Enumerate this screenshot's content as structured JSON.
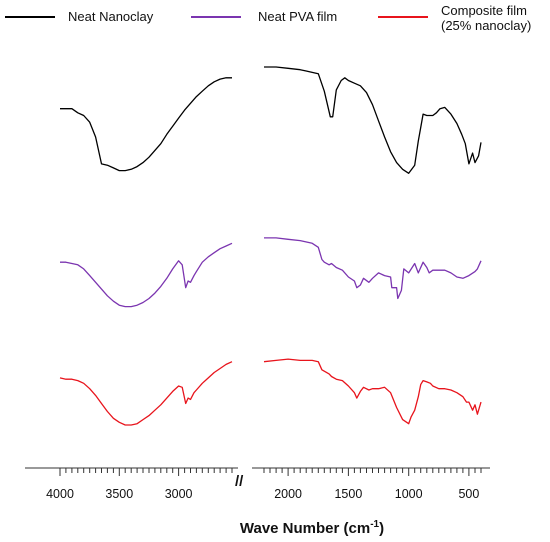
{
  "chart_data": {
    "type": "line",
    "xlabel": "Wave Number (cm-1)",
    "xlabel_main": "Wave Number (cm",
    "xlabel_sup": "-1",
    "xlabel_close": ")",
    "x_reversed": true,
    "axis_break": true,
    "break_mark": "//",
    "x_segments": [
      [
        4000,
        2550
      ],
      [
        2200,
        400
      ]
    ],
    "y_axis_visible": false,
    "grid": false,
    "legend_position": "top",
    "ticks": [
      {
        "value": 4000,
        "label": "4000"
      },
      {
        "value": 3500,
        "label": "3500"
      },
      {
        "value": 3000,
        "label": "3000"
      },
      {
        "value": 2000,
        "label": "2000"
      },
      {
        "value": 1500,
        "label": "1500"
      },
      {
        "value": 1000,
        "label": "1000"
      },
      {
        "value": 500,
        "label": "500"
      }
    ],
    "series": [
      {
        "name": "Neat Nanoclay",
        "color": "#000000",
        "x": [
          4000,
          3950,
          3900,
          3850,
          3800,
          3750,
          3700,
          3650,
          3600,
          3550,
          3500,
          3450,
          3400,
          3350,
          3300,
          3250,
          3200,
          3150,
          3100,
          3050,
          3000,
          2950,
          2900,
          2850,
          2800,
          2750,
          2700,
          2650,
          2600,
          2550,
          2200,
          2100,
          2000,
          1900,
          1850,
          1800,
          1750,
          1700,
          1650,
          1630,
          1600,
          1560,
          1530,
          1500,
          1450,
          1400,
          1350,
          1300,
          1250,
          1200,
          1150,
          1100,
          1050,
          1000,
          950,
          920,
          900,
          880,
          850,
          800,
          770,
          740,
          700,
          650,
          600,
          560,
          530,
          500,
          470,
          450,
          420,
          400
        ],
        "y": [
          0.31,
          0.31,
          0.31,
          0.34,
          0.36,
          0.41,
          0.52,
          0.72,
          0.73,
          0.75,
          0.77,
          0.77,
          0.76,
          0.74,
          0.71,
          0.67,
          0.62,
          0.57,
          0.5,
          0.44,
          0.38,
          0.32,
          0.27,
          0.22,
          0.18,
          0.14,
          0.11,
          0.09,
          0.08,
          0.08,
          0.0,
          0.0,
          0.01,
          0.02,
          0.03,
          0.04,
          0.05,
          0.18,
          0.37,
          0.37,
          0.17,
          0.1,
          0.08,
          0.1,
          0.12,
          0.14,
          0.19,
          0.28,
          0.4,
          0.52,
          0.63,
          0.71,
          0.76,
          0.79,
          0.73,
          0.55,
          0.45,
          0.35,
          0.36,
          0.36,
          0.34,
          0.31,
          0.3,
          0.35,
          0.42,
          0.5,
          0.57,
          0.72,
          0.64,
          0.71,
          0.66,
          0.56
        ]
      },
      {
        "name": "Neat PVA film",
        "color": "#7b35b0",
        "x": [
          4000,
          3950,
          3900,
          3850,
          3800,
          3750,
          3700,
          3650,
          3600,
          3550,
          3500,
          3450,
          3400,
          3350,
          3300,
          3250,
          3200,
          3150,
          3100,
          3050,
          3000,
          2970,
          2940,
          2920,
          2900,
          2870,
          2850,
          2800,
          2750,
          2700,
          2650,
          2600,
          2550,
          2200,
          2100,
          2000,
          1900,
          1800,
          1750,
          1720,
          1700,
          1660,
          1640,
          1600,
          1550,
          1500,
          1450,
          1430,
          1400,
          1375,
          1330,
          1300,
          1250,
          1200,
          1150,
          1140,
          1100,
          1090,
          1060,
          1040,
          1000,
          950,
          920,
          880,
          850,
          830,
          800,
          750,
          700,
          650,
          600,
          550,
          500,
          450,
          430,
          400
        ],
        "y": [
          1.45,
          1.45,
          1.46,
          1.47,
          1.5,
          1.55,
          1.6,
          1.65,
          1.7,
          1.74,
          1.77,
          1.78,
          1.78,
          1.77,
          1.75,
          1.72,
          1.68,
          1.63,
          1.57,
          1.5,
          1.44,
          1.47,
          1.64,
          1.59,
          1.6,
          1.55,
          1.52,
          1.45,
          1.41,
          1.38,
          1.35,
          1.33,
          1.31,
          1.27,
          1.27,
          1.28,
          1.29,
          1.31,
          1.34,
          1.43,
          1.45,
          1.47,
          1.46,
          1.49,
          1.51,
          1.56,
          1.59,
          1.64,
          1.62,
          1.57,
          1.6,
          1.57,
          1.53,
          1.55,
          1.56,
          1.64,
          1.64,
          1.72,
          1.66,
          1.5,
          1.53,
          1.46,
          1.53,
          1.45,
          1.49,
          1.53,
          1.51,
          1.51,
          1.51,
          1.53,
          1.56,
          1.57,
          1.55,
          1.52,
          1.5,
          1.44
        ]
      },
      {
        "name": "Composite film\n(25% nanoclay)",
        "color": "#e8141c",
        "x": [
          4000,
          3950,
          3900,
          3850,
          3800,
          3750,
          3700,
          3650,
          3600,
          3550,
          3500,
          3450,
          3400,
          3350,
          3300,
          3250,
          3200,
          3150,
          3100,
          3050,
          3000,
          2970,
          2940,
          2920,
          2900,
          2870,
          2850,
          2800,
          2750,
          2700,
          2650,
          2600,
          2550,
          2200,
          2100,
          2000,
          1900,
          1800,
          1750,
          1720,
          1700,
          1660,
          1640,
          1600,
          1550,
          1500,
          1450,
          1430,
          1400,
          1375,
          1330,
          1300,
          1250,
          1200,
          1150,
          1100,
          1050,
          1000,
          980,
          950,
          920,
          900,
          880,
          850,
          820,
          800,
          750,
          700,
          650,
          600,
          550,
          520,
          500,
          470,
          450,
          430,
          400
        ],
        "y": [
          2.31,
          2.32,
          2.32,
          2.33,
          2.35,
          2.39,
          2.44,
          2.5,
          2.56,
          2.61,
          2.64,
          2.66,
          2.66,
          2.65,
          2.62,
          2.59,
          2.55,
          2.51,
          2.46,
          2.41,
          2.37,
          2.38,
          2.5,
          2.46,
          2.47,
          2.42,
          2.4,
          2.35,
          2.31,
          2.27,
          2.24,
          2.21,
          2.19,
          2.19,
          2.18,
          2.17,
          2.18,
          2.18,
          2.19,
          2.25,
          2.26,
          2.28,
          2.3,
          2.32,
          2.33,
          2.37,
          2.42,
          2.46,
          2.41,
          2.38,
          2.4,
          2.39,
          2.39,
          2.38,
          2.42,
          2.53,
          2.62,
          2.65,
          2.6,
          2.55,
          2.45,
          2.36,
          2.33,
          2.34,
          2.35,
          2.37,
          2.39,
          2.39,
          2.4,
          2.42,
          2.45,
          2.49,
          2.49,
          2.55,
          2.51,
          2.58,
          2.49
        ]
      }
    ]
  }
}
